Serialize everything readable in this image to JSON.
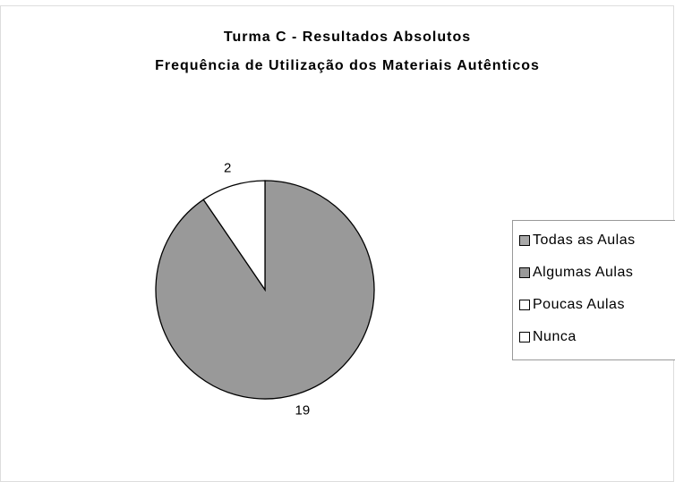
{
  "chart_data": {
    "type": "pie",
    "title": "Turma C - Resultados Absolutos",
    "subtitle": "Frequência de Utilização dos Materiais Autênticos",
    "categories": [
      "Todas as Aulas",
      "Algumas Aulas",
      "Poucas Aulas",
      "Nunca"
    ],
    "values": [
      0,
      19,
      2,
      0
    ],
    "colors": [
      "#a8a8a8",
      "#999999",
      "#ffffff",
      "#ffffff"
    ],
    "legend": "right"
  }
}
